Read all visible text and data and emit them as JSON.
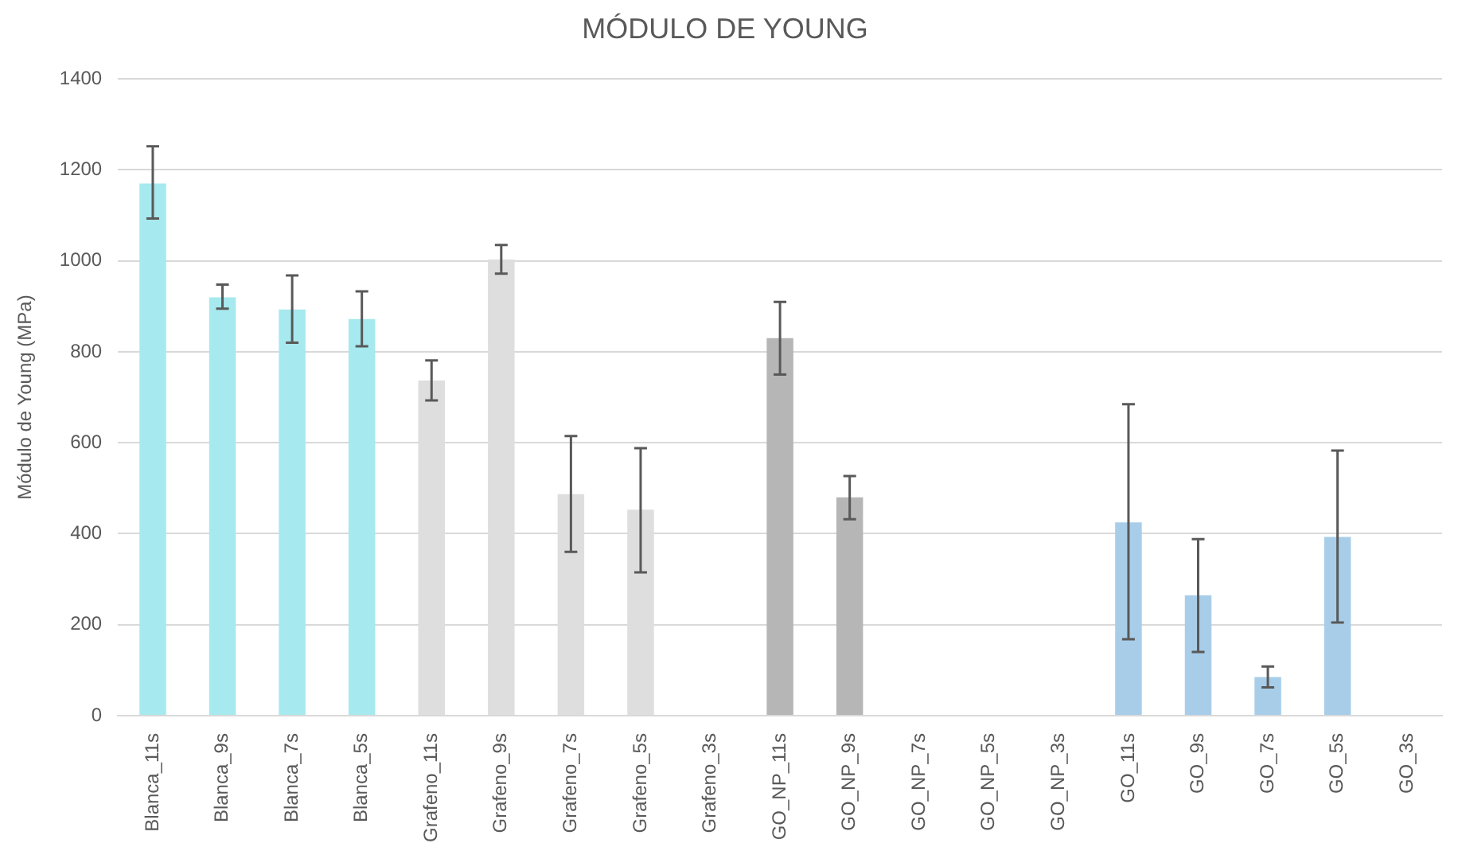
{
  "chart_data": {
    "type": "bar",
    "title": "MÓDULO DE YOUNG",
    "ylabel": "Módulo de Young (MPa)",
    "categories": [
      "Blanca_11s",
      "Blanca_9s",
      "Blanca_7s",
      "Blanca_5s",
      "Grafeno_11s",
      "Grafeno_9s",
      "Grafeno_7s",
      "Grafeno_5s",
      "Grafeno_3s",
      "GO_NP_11s",
      "GO_NP_9s",
      "GO_NP_7s",
      "GO_NP_5s",
      "GO_NP_3s",
      "GO_11s",
      "GO_9s",
      "GO_7s",
      "GO_5s",
      "GO_3s"
    ],
    "values": [
      1170,
      920,
      893,
      872,
      737,
      1003,
      487,
      453,
      null,
      830,
      480,
      null,
      null,
      null,
      425,
      265,
      85,
      393,
      null
    ],
    "errors": [
      [
        1093,
        1252
      ],
      [
        895,
        948
      ],
      [
        820,
        968
      ],
      [
        812,
        933
      ],
      [
        693,
        781
      ],
      [
        972,
        1035
      ],
      [
        360,
        615
      ],
      [
        315,
        588
      ],
      null,
      [
        750,
        910
      ],
      [
        432,
        527
      ],
      null,
      null,
      null,
      [
        168,
        685
      ],
      [
        140,
        388
      ],
      [
        62,
        108
      ],
      [
        205,
        583
      ],
      null
    ],
    "colors": [
      "#a6e9ee",
      "#a6e9ee",
      "#a6e9ee",
      "#a6e9ee",
      "#dedede",
      "#dedede",
      "#dedede",
      "#dedede",
      "#dedede",
      "#b7b6b6",
      "#b7b6b6",
      "#b7b6b6",
      "#b7b6b6",
      "#b7b6b6",
      "#a8cde9",
      "#a8cde9",
      "#a8cde9",
      "#a8cde9",
      "#a8cde9"
    ],
    "ylim": [
      0,
      1400
    ],
    "yticks": [
      0,
      200,
      400,
      600,
      800,
      1000,
      1200,
      1400
    ],
    "grid": "y",
    "legend": false
  }
}
